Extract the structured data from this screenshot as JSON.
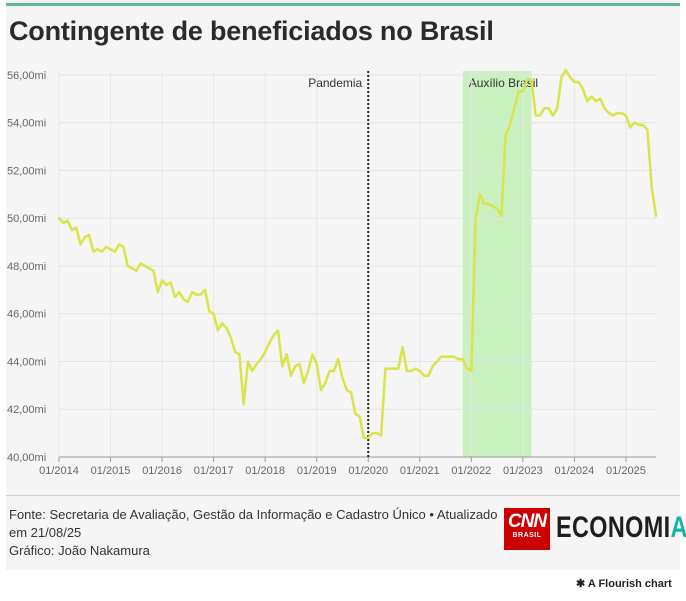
{
  "title": "Contingente de beneficiados no Brasil",
  "footer": {
    "source": "Fonte: Secretaria de Avaliação, Gestão da Informação e Cadastro Único",
    "separator": "•",
    "updated": "Atualizado em 21/08/25",
    "credit": "Gráfico: João Nakamura"
  },
  "branding": {
    "cnn_word": "CNN",
    "cnn_sub": "BRASIL",
    "economia_main": "ECONOMI",
    "economia_accent": "A",
    "flourish": "A Flourish chart",
    "flourish_icon": "asterisk-icon"
  },
  "colors": {
    "line": "#d9e34a",
    "band": "#c9f0bf",
    "accent_bar": "#5db8a0"
  },
  "chart_data": {
    "type": "line",
    "title": "Contingente de beneficiados no Brasil",
    "xlabel": "",
    "ylabel": "",
    "xlim": [
      "2014-01",
      "2025-08"
    ],
    "ylim": [
      40,
      57
    ],
    "y_ticks": [
      40,
      42,
      44,
      46,
      48,
      50,
      52,
      54,
      56
    ],
    "y_tick_labels": [
      "40,00mi",
      "42,00mi",
      "44,00mi",
      "46,00mi",
      "48,00mi",
      "50,00mi",
      "52,00mi",
      "54,00mi",
      "56,00mi"
    ],
    "x_ticks": [
      "2014-01",
      "2015-01",
      "2016-01",
      "2017-01",
      "2018-01",
      "2019-01",
      "2020-01",
      "2021-01",
      "2022-01",
      "2023-01",
      "2024-01",
      "2025-01"
    ],
    "x_tick_labels": [
      "01/2014",
      "01/2015",
      "01/2016",
      "01/2017",
      "01/2018",
      "01/2019",
      "01/2020",
      "01/2021",
      "01/2022",
      "01/2023",
      "01/2024",
      "01/2025"
    ],
    "grid": true,
    "annotations": [
      {
        "type": "vline",
        "x": "2020-01",
        "label": "Pandemia"
      },
      {
        "type": "band",
        "x_start": "2021-11",
        "x_end": "2023-03",
        "label": "Auxílio Brasil"
      }
    ],
    "series": [
      {
        "x": [
          "2014-01",
          "2014-02",
          "2014-03",
          "2014-04",
          "2014-05",
          "2014-06",
          "2014-07",
          "2014-08",
          "2014-09",
          "2014-10",
          "2014-11",
          "2014-12",
          "2015-01",
          "2015-02",
          "2015-03",
          "2015-04",
          "2015-05",
          "2015-06",
          "2015-07",
          "2015-08",
          "2015-09",
          "2015-10",
          "2015-11",
          "2015-12",
          "2016-01",
          "2016-02",
          "2016-03",
          "2016-04",
          "2016-05",
          "2016-06",
          "2016-07",
          "2016-08",
          "2016-09",
          "2016-10",
          "2016-11",
          "2016-12",
          "2017-01",
          "2017-02",
          "2017-03",
          "2017-04",
          "2017-05",
          "2017-06",
          "2017-07",
          "2017-08",
          "2017-09",
          "2017-10",
          "2017-11",
          "2017-12",
          "2018-01",
          "2018-02",
          "2018-03",
          "2018-04",
          "2018-05",
          "2018-06",
          "2018-07",
          "2018-08",
          "2018-09",
          "2018-10",
          "2018-11",
          "2018-12",
          "2019-01",
          "2019-02",
          "2019-03",
          "2019-04",
          "2019-05",
          "2019-06",
          "2019-07",
          "2019-08",
          "2019-09",
          "2019-10",
          "2019-11",
          "2019-12",
          "2020-01",
          "2020-02",
          "2020-03",
          "2020-04",
          "2020-05",
          "2020-06",
          "2020-07",
          "2020-08",
          "2020-09",
          "2020-10",
          "2020-11",
          "2020-12",
          "2021-01",
          "2021-02",
          "2021-03",
          "2021-04",
          "2021-05",
          "2021-06",
          "2021-07",
          "2021-08",
          "2021-09",
          "2021-10",
          "2021-11",
          "2021-12",
          "2022-01",
          "2022-02",
          "2022-03",
          "2022-04",
          "2022-05",
          "2022-06",
          "2022-07",
          "2022-08",
          "2022-09",
          "2022-10",
          "2022-11",
          "2022-12",
          "2023-01",
          "2023-02",
          "2023-03",
          "2023-04",
          "2023-05",
          "2023-06",
          "2023-07",
          "2023-08",
          "2023-09",
          "2023-10",
          "2023-11",
          "2023-12",
          "2024-01",
          "2024-02",
          "2024-03",
          "2024-04",
          "2024-05",
          "2024-06",
          "2024-07",
          "2024-08",
          "2024-09",
          "2024-10",
          "2024-11",
          "2024-12",
          "2025-01",
          "2025-02",
          "2025-03",
          "2025-04",
          "2025-05",
          "2025-06",
          "2025-07",
          "2025-08"
        ],
        "values": [
          50.0,
          49.8,
          49.9,
          49.5,
          49.6,
          48.9,
          49.2,
          49.3,
          48.6,
          48.7,
          48.6,
          48.8,
          48.7,
          48.6,
          48.9,
          48.8,
          48.0,
          47.9,
          47.8,
          48.1,
          48.0,
          47.9,
          47.8,
          46.9,
          47.4,
          47.2,
          47.3,
          46.7,
          46.9,
          46.6,
          46.5,
          46.9,
          46.8,
          46.8,
          47.0,
          46.1,
          46.0,
          45.3,
          45.6,
          45.4,
          45.0,
          44.4,
          44.3,
          42.2,
          44.0,
          43.6,
          43.9,
          44.1,
          44.4,
          44.8,
          45.1,
          45.3,
          43.8,
          44.3,
          43.4,
          43.8,
          43.9,
          43.1,
          43.6,
          44.3,
          43.9,
          42.8,
          43.1,
          43.6,
          43.6,
          44.1,
          43.3,
          42.8,
          42.7,
          41.8,
          41.7,
          40.8,
          40.8,
          41.0,
          41.0,
          40.9,
          43.7,
          43.7,
          43.7,
          43.7,
          44.6,
          43.6,
          43.6,
          43.7,
          43.6,
          43.4,
          43.4,
          43.8,
          44.0,
          44.2,
          44.2,
          44.2,
          44.2,
          44.1,
          44.1,
          43.7,
          43.6,
          50.0,
          51.0,
          50.6,
          50.6,
          50.5,
          50.4,
          50.1,
          53.5,
          53.9,
          54.6,
          55.3,
          55.3,
          55.8,
          55.8,
          54.3,
          54.3,
          54.6,
          54.6,
          54.3,
          54.6,
          55.9,
          56.2,
          55.9,
          55.7,
          55.7,
          55.4,
          54.9,
          55.1,
          54.9,
          55.0,
          54.6,
          54.4,
          54.3,
          54.4,
          54.4,
          54.3,
          53.8,
          54.0,
          53.9,
          53.9,
          53.7,
          51.3,
          50.1
        ]
      }
    ]
  }
}
